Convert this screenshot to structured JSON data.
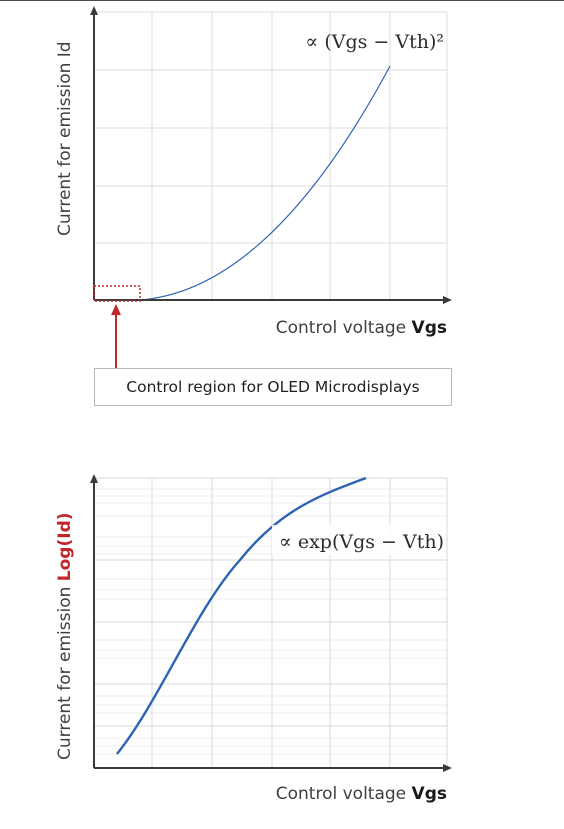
{
  "colors": {
    "curve": "#2e62b3",
    "axis": "#3a3a3a",
    "grid": "#dcdcdc",
    "accent_red": "#c0282c"
  },
  "top_chart": {
    "y_axis_label": "Current for emission Id",
    "x_axis_label_prefix": "Control voltage ",
    "x_axis_label_bold": "Vgs",
    "formula": "∝ (Vgs − Vth)²",
    "callout_label": "Control region for OLED Microdisplays"
  },
  "bottom_chart": {
    "y_axis_label_prefix": "Current for emission ",
    "y_axis_label_red": "Log(Id)",
    "x_axis_label_prefix": "Control voltage ",
    "x_axis_label_bold": "Vgs",
    "formula": "∝ exp(Vgs − Vth)"
  }
}
